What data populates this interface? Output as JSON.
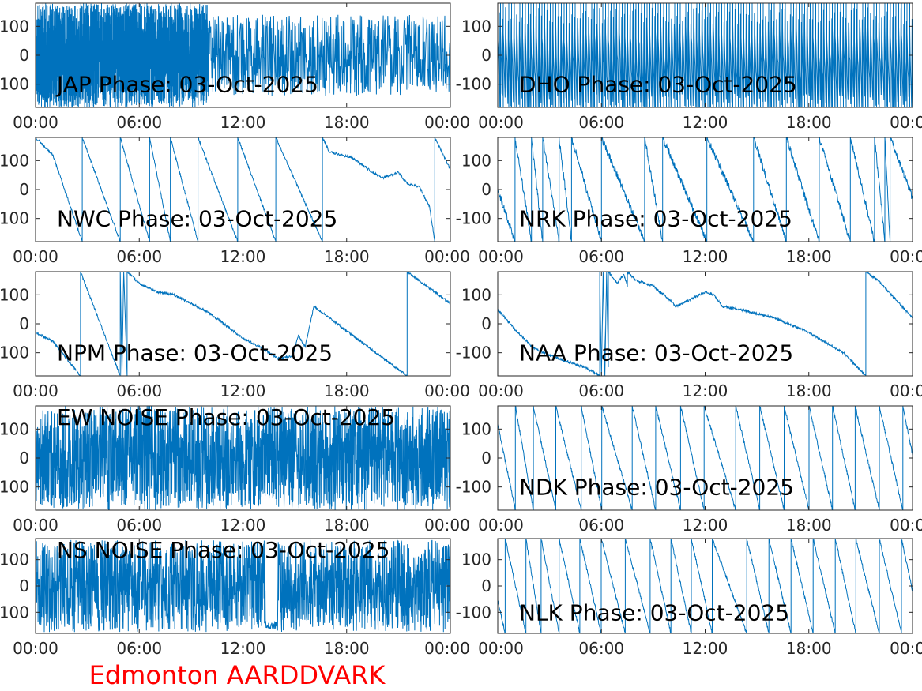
{
  "footer": "Edmonton AARDDVARK",
  "colors": {
    "line": "#0072BD",
    "axes": "#262626",
    "footer": "#FF0000"
  },
  "chart_data": {
    "type": "line",
    "layout": "5 rows x 2 columns",
    "xlabel": "",
    "ylabel": "",
    "x_unit": "hours",
    "xlim": [
      0,
      24
    ],
    "ylim": [
      -180,
      180
    ],
    "xticks": [
      0,
      6,
      12,
      18,
      24
    ],
    "xtick_labels": [
      "00:00",
      "06:00",
      "12:00",
      "18:00",
      "00:00"
    ],
    "yticks": [
      100,
      0,
      -100
    ],
    "ytick_labels": [
      "100",
      "0",
      "-100"
    ],
    "panels": [
      {
        "title": "JAP Phase: 03-Oct-2025",
        "title_place": "bottom",
        "mode": "noise",
        "seed": 11,
        "segments": [
          {
            "from": 0,
            "to": 10,
            "center": 0,
            "spread": 180,
            "step": 0.004
          },
          {
            "from": 10,
            "to": 24,
            "center": 0,
            "spread": 140,
            "step": 0.02
          }
        ]
      },
      {
        "title": "DHO Phase: 03-Oct-2025",
        "title_place": "bottom",
        "mode": "sawtooth",
        "seed": 12,
        "period": 0.16,
        "noise": 30
      },
      {
        "title": "NWC Phase: 03-Oct-2025",
        "title_place": "bottom",
        "mode": "keypoints",
        "seed": 13,
        "noise": 4,
        "points": [
          [
            0,
            180
          ],
          [
            1,
            120
          ],
          [
            2.7,
            -180
          ],
          [
            2.7,
            180
          ],
          [
            4.9,
            -180
          ],
          [
            4.9,
            180
          ],
          [
            6.6,
            -180
          ],
          [
            6.6,
            180
          ],
          [
            7.8,
            -180
          ],
          [
            7.8,
            180
          ],
          [
            9.4,
            -180
          ],
          [
            9.4,
            180
          ],
          [
            11.7,
            -180
          ],
          [
            11.7,
            180
          ],
          [
            13.9,
            -180
          ],
          [
            13.9,
            180
          ],
          [
            16.6,
            -180
          ],
          [
            16.6,
            180
          ],
          [
            17,
            130
          ],
          [
            18.3,
            110
          ],
          [
            19.5,
            60
          ],
          [
            20.1,
            40
          ],
          [
            21,
            60
          ],
          [
            21.5,
            20
          ],
          [
            22.2,
            10
          ],
          [
            22.8,
            -60
          ],
          [
            23.1,
            -180
          ],
          [
            23.1,
            180
          ],
          [
            24,
            70
          ]
        ]
      },
      {
        "title": "NRK Phase: 03-Oct-2025",
        "title_place": "bottom",
        "mode": "wraps",
        "seed": 14,
        "noise": 12,
        "start": 0,
        "end": -30,
        "wrap_hours": [
          1.0,
          1.95,
          2.6,
          3.55,
          4.27,
          6.0,
          8.5,
          9.54,
          12.1,
          14.8,
          16.7,
          18.6,
          20.4,
          21.8,
          22.4,
          22.7
        ]
      },
      {
        "title": "NPM Phase: 03-Oct-2025",
        "title_place": "bottom",
        "mode": "keypoints",
        "seed": 15,
        "noise": 4,
        "points": [
          [
            0,
            -30
          ],
          [
            1,
            -60
          ],
          [
            2.6,
            -180
          ],
          [
            2.6,
            180
          ],
          [
            4.9,
            -180
          ],
          [
            4.9,
            180
          ],
          [
            5.0,
            -180
          ],
          [
            5.1,
            180
          ],
          [
            5.3,
            -180
          ],
          [
            5.3,
            180
          ],
          [
            6,
            140
          ],
          [
            7,
            110
          ],
          [
            8,
            100
          ],
          [
            10,
            40
          ],
          [
            12,
            -50
          ],
          [
            13,
            -80
          ],
          [
            14,
            -120
          ],
          [
            14.9,
            -110
          ],
          [
            15.2,
            -40
          ],
          [
            15.4,
            -60
          ],
          [
            15.6,
            -80
          ],
          [
            16.1,
            60
          ],
          [
            17,
            20
          ],
          [
            21.5,
            -180
          ],
          [
            21.5,
            180
          ],
          [
            24,
            70
          ]
        ]
      },
      {
        "title": "NAA Phase: 03-Oct-2025",
        "title_place": "bottom",
        "mode": "keypoints",
        "seed": 16,
        "noise": 4,
        "points": [
          [
            0,
            50
          ],
          [
            1,
            -20
          ],
          [
            2,
            -80
          ],
          [
            3,
            -110
          ],
          [
            4,
            -130
          ],
          [
            5,
            -150
          ],
          [
            5.8,
            -175
          ],
          [
            5.9,
            -180
          ],
          [
            5.9,
            180
          ],
          [
            6.0,
            -180
          ],
          [
            6.1,
            180
          ],
          [
            6.2,
            -180
          ],
          [
            6.3,
            180
          ],
          [
            6.4,
            -150
          ],
          [
            6.4,
            180
          ],
          [
            6.9,
            140
          ],
          [
            7.3,
            170
          ],
          [
            7.5,
            130
          ],
          [
            7.5,
            180
          ],
          [
            8,
            150
          ],
          [
            9,
            130
          ],
          [
            10,
            80
          ],
          [
            10.3,
            60
          ],
          [
            11,
            80
          ],
          [
            12,
            110
          ],
          [
            12.5,
            100
          ],
          [
            13,
            60
          ],
          [
            14,
            50
          ],
          [
            16,
            20
          ],
          [
            18,
            -30
          ],
          [
            20,
            -100
          ],
          [
            21.3,
            -180
          ],
          [
            21.3,
            180
          ],
          [
            22,
            150
          ],
          [
            24,
            20
          ]
        ]
      },
      {
        "title": "EW NOISE Phase: 03-Oct-2025",
        "title_place": "top",
        "mode": "noise",
        "seed": 17,
        "segments": [
          {
            "from": 0,
            "to": 24,
            "center": 0,
            "spread": 180,
            "step": 0.012
          }
        ]
      },
      {
        "title": "NDK Phase: 03-Oct-2025",
        "title_place": "bottom",
        "mode": "wraps",
        "seed": 18,
        "noise": 6,
        "start": 117,
        "end": 10,
        "wrap_hours": [
          1.02,
          2.06,
          3.36,
          4.83,
          6.02,
          7.78,
          9.14,
          10.58,
          11.94,
          13.77,
          15.16,
          16.57,
          18.01,
          19.37,
          20.68,
          22.08,
          23.44
        ]
      },
      {
        "title": "NS NOISE Phase: 03-Oct-2025",
        "title_place": "top",
        "mode": "noise",
        "seed": 19,
        "segments": [
          {
            "from": 0,
            "to": 13.3,
            "center": 0,
            "spread": 175,
            "step": 0.014
          },
          {
            "from": 13.3,
            "to": 14.0,
            "center": -150,
            "spread": 15,
            "step": 0.02
          },
          {
            "from": 14.0,
            "to": 24,
            "center": 0,
            "spread": 175,
            "step": 0.014
          }
        ]
      },
      {
        "title": "NLK Phase: 03-Oct-2025",
        "title_place": "bottom",
        "mode": "wraps",
        "seed": 20,
        "noise": 6,
        "start": -55,
        "end": -20,
        "wrap_hours": [
          0.43,
          1.63,
          2.51,
          3.55,
          4.75,
          5.99,
          7.38,
          8.82,
          10.02,
          11.2,
          12.41,
          14.41,
          15.69,
          16.97,
          18.25,
          19.53,
          20.72,
          22.08,
          23.36
        ]
      }
    ]
  }
}
